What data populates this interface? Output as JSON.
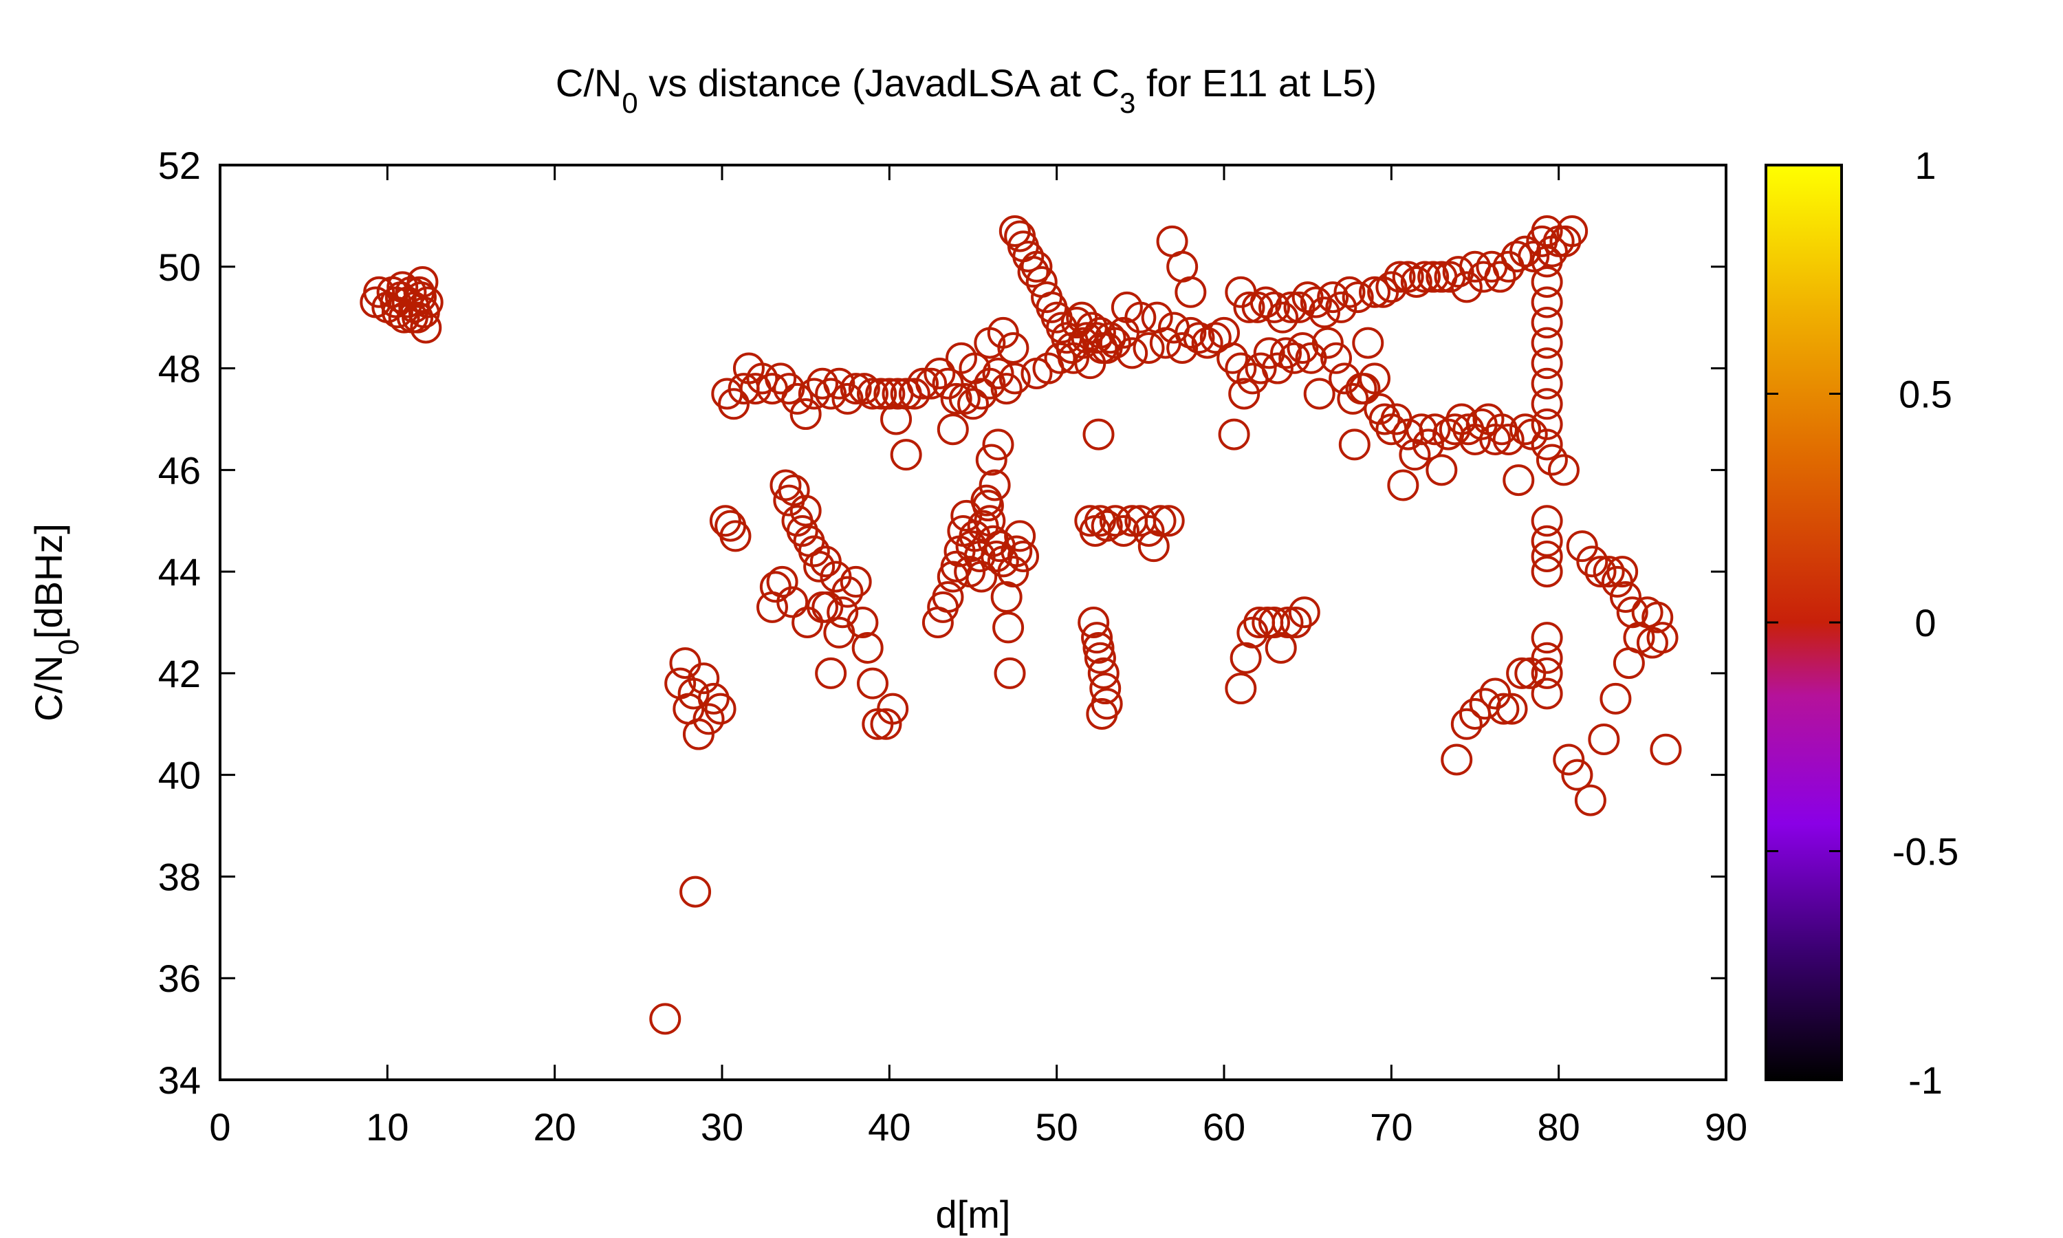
{
  "chart_data": {
    "type": "scatter",
    "title_parts": {
      "a": "C/N",
      "b": "0",
      "c": " vs distance (JavadLSA at C",
      "d": "3",
      "e": " for E11 at L5)"
    },
    "xlabel": "d[m]",
    "ylabel_parts": {
      "a": "C/N",
      "b": "0",
      "c": "[dBHz]"
    },
    "xlim": [
      0,
      90
    ],
    "ylim": [
      34,
      52
    ],
    "x_ticks": [
      "0",
      "10",
      "20",
      "30",
      "40",
      "50",
      "60",
      "70",
      "80",
      "90"
    ],
    "y_ticks": [
      "34",
      "36",
      "38",
      "40",
      "42",
      "44",
      "46",
      "48",
      "50",
      "52"
    ],
    "colorbar": {
      "range": [
        -1,
        1
      ],
      "ticks": [
        "-1",
        "-0.5",
        "0",
        "0.5",
        "1"
      ],
      "palette": [
        "#000000",
        "#3a0070",
        "#8a00e6",
        "#b5129a",
        "#c8200a",
        "#e06a00",
        "#f0b000",
        "#ffff00"
      ]
    },
    "marker_color": "#b81d00",
    "grid": false,
    "points": [
      [
        9.3,
        49.3
      ],
      [
        9.5,
        49.5
      ],
      [
        10,
        49.2
      ],
      [
        10.3,
        49.5
      ],
      [
        10.6,
        49.1
      ],
      [
        10.8,
        49.4
      ],
      [
        11,
        49.0
      ],
      [
        11.2,
        49.3
      ],
      [
        11.4,
        49.5
      ],
      [
        11.6,
        49.2
      ],
      [
        11.8,
        49.0
      ],
      [
        12,
        49.4
      ],
      [
        12.1,
        49.7
      ],
      [
        12.2,
        49.1
      ],
      [
        12.3,
        48.8
      ],
      [
        12.4,
        49.3
      ],
      [
        10.9,
        49.6
      ],
      [
        11.5,
        49.0
      ],
      [
        10.5,
        49.3
      ],
      [
        11.9,
        49.5
      ],
      [
        26.6,
        35.2
      ],
      [
        28.4,
        37.7
      ],
      [
        27.5,
        41.8
      ],
      [
        27.8,
        42.2
      ],
      [
        28,
        41.3
      ],
      [
        28.3,
        41.6
      ],
      [
        28.6,
        40.8
      ],
      [
        28.9,
        41.9
      ],
      [
        29.2,
        41.1
      ],
      [
        29.5,
        41.5
      ],
      [
        29.9,
        41.3
      ],
      [
        30.2,
        45.0
      ],
      [
        30.5,
        44.9
      ],
      [
        30.8,
        44.7
      ],
      [
        30.3,
        47.5
      ],
      [
        30.7,
        47.3
      ],
      [
        31.3,
        47.6
      ],
      [
        31.6,
        48.0
      ],
      [
        32.0,
        47.6
      ],
      [
        32.4,
        47.8
      ],
      [
        33.0,
        47.6
      ],
      [
        33.5,
        47.8
      ],
      [
        34.0,
        47.6
      ],
      [
        34.5,
        47.4
      ],
      [
        35.0,
        47.1
      ],
      [
        35.5,
        47.5
      ],
      [
        36.0,
        47.7
      ],
      [
        36.5,
        47.5
      ],
      [
        37.0,
        47.7
      ],
      [
        37.5,
        47.4
      ],
      [
        38.0,
        47.6
      ],
      [
        38.5,
        47.6
      ],
      [
        39.0,
        47.5
      ],
      [
        39.5,
        47.5
      ],
      [
        40.0,
        47.5
      ],
      [
        40.5,
        47.5
      ],
      [
        41.0,
        47.5
      ],
      [
        41.5,
        47.5
      ],
      [
        42.0,
        47.7
      ],
      [
        42.5,
        47.7
      ],
      [
        43.0,
        47.9
      ],
      [
        43.5,
        47.7
      ],
      [
        44.0,
        47.4
      ],
      [
        44.5,
        47.4
      ],
      [
        45.0,
        47.3
      ],
      [
        45.5,
        47.5
      ],
      [
        46.0,
        47.7
      ],
      [
        46.5,
        47.9
      ],
      [
        47.0,
        47.6
      ],
      [
        47.5,
        47.8
      ],
      [
        40.4,
        47.0
      ],
      [
        41.0,
        46.3
      ],
      [
        43.8,
        46.8
      ],
      [
        44.3,
        48.2
      ],
      [
        45.1,
        48.0
      ],
      [
        46.0,
        48.5
      ],
      [
        46.8,
        48.7
      ],
      [
        47.4,
        48.4
      ],
      [
        33.0,
        43.3
      ],
      [
        33.2,
        43.7
      ],
      [
        33.6,
        43.8
      ],
      [
        33.8,
        45.7
      ],
      [
        34.0,
        45.4
      ],
      [
        34.3,
        45.6
      ],
      [
        34.5,
        45.0
      ],
      [
        34.8,
        44.8
      ],
      [
        35.0,
        45.2
      ],
      [
        35.2,
        44.6
      ],
      [
        35.5,
        44.4
      ],
      [
        35.8,
        44.1
      ],
      [
        36.0,
        43.3
      ],
      [
        36.2,
        44.2
      ],
      [
        36.5,
        42.0
      ],
      [
        36.8,
        43.9
      ],
      [
        37.2,
        43.2
      ],
      [
        37.5,
        43.6
      ],
      [
        38.0,
        43.8
      ],
      [
        38.4,
        43.0
      ],
      [
        38.7,
        42.5
      ],
      [
        39.0,
        41.8
      ],
      [
        39.3,
        41.0
      ],
      [
        39.8,
        41.0
      ],
      [
        40.2,
        41.3
      ],
      [
        35.1,
        43.0
      ],
      [
        36.3,
        43.3
      ],
      [
        37.0,
        42.8
      ],
      [
        34.2,
        43.4
      ],
      [
        42.9,
        43.0
      ],
      [
        43.2,
        43.3
      ],
      [
        43.5,
        43.5
      ],
      [
        43.8,
        43.9
      ],
      [
        44.0,
        44.1
      ],
      [
        44.2,
        44.4
      ],
      [
        44.4,
        44.8
      ],
      [
        44.6,
        45.1
      ],
      [
        44.9,
        44.5
      ],
      [
        45.1,
        44.7
      ],
      [
        45.4,
        44.3
      ],
      [
        45.6,
        44.9
      ],
      [
        45.8,
        45.4
      ],
      [
        46.0,
        45.0
      ],
      [
        46.2,
        44.6
      ],
      [
        46.4,
        44.3
      ],
      [
        46.6,
        44.5
      ],
      [
        46.8,
        44.2
      ],
      [
        47.0,
        43.5
      ],
      [
        47.1,
        42.9
      ],
      [
        47.2,
        42.0
      ],
      [
        47.4,
        44.0
      ],
      [
        47.6,
        44.4
      ],
      [
        47.8,
        44.7
      ],
      [
        48.0,
        44.3
      ],
      [
        45.5,
        43.9
      ],
      [
        44.8,
        44.0
      ],
      [
        46.3,
        45.7
      ],
      [
        46.1,
        46.2
      ],
      [
        46.5,
        46.5
      ],
      [
        45.9,
        45.3
      ],
      [
        47.5,
        50.7
      ],
      [
        47.8,
        50.6
      ],
      [
        48.0,
        50.4
      ],
      [
        48.3,
        50.2
      ],
      [
        48.6,
        49.9
      ],
      [
        48.8,
        50.0
      ],
      [
        49.1,
        49.7
      ],
      [
        49.4,
        49.4
      ],
      [
        49.7,
        49.2
      ],
      [
        50.0,
        49.0
      ],
      [
        50.3,
        48.8
      ],
      [
        50.6,
        48.6
      ],
      [
        50.9,
        48.4
      ],
      [
        51.2,
        48.9
      ],
      [
        51.5,
        49.0
      ],
      [
        51.8,
        48.6
      ],
      [
        52.1,
        48.8
      ],
      [
        52.4,
        48.6
      ],
      [
        52.7,
        48.4
      ],
      [
        53.0,
        48.4
      ],
      [
        50.2,
        48.2
      ],
      [
        49.5,
        48.0
      ],
      [
        48.8,
        47.9
      ],
      [
        51.0,
        48.2
      ],
      [
        51.6,
        48.5
      ],
      [
        52.0,
        48.1
      ],
      [
        52.6,
        48.7
      ],
      [
        53.2,
        48.6
      ],
      [
        52.5,
        46.7
      ],
      [
        52.0,
        45.0
      ],
      [
        52.3,
        44.8
      ],
      [
        52.6,
        45.0
      ],
      [
        53.0,
        44.9
      ],
      [
        53.5,
        45.0
      ],
      [
        54.0,
        44.8
      ],
      [
        54.5,
        45.0
      ],
      [
        55.0,
        45.0
      ],
      [
        55.5,
        44.8
      ],
      [
        55.8,
        44.5
      ],
      [
        56.2,
        45.0
      ],
      [
        56.7,
        45.0
      ],
      [
        52.2,
        43.0
      ],
      [
        52.4,
        42.7
      ],
      [
        52.6,
        42.3
      ],
      [
        52.8,
        42.0
      ],
      [
        52.9,
        41.7
      ],
      [
        53.0,
        41.4
      ],
      [
        52.7,
        41.2
      ],
      [
        52.5,
        42.5
      ],
      [
        53.5,
        48.5
      ],
      [
        54.0,
        48.7
      ],
      [
        54.5,
        48.3
      ],
      [
        54.2,
        49.2
      ],
      [
        55.0,
        49.0
      ],
      [
        55.5,
        48.4
      ],
      [
        56.0,
        49.0
      ],
      [
        56.5,
        48.5
      ],
      [
        57.0,
        48.8
      ],
      [
        57.5,
        48.4
      ],
      [
        58.0,
        48.7
      ],
      [
        58.5,
        48.6
      ],
      [
        59.0,
        48.5
      ],
      [
        59.5,
        48.6
      ],
      [
        60.0,
        48.7
      ],
      [
        60.5,
        48.2
      ],
      [
        61.0,
        48.0
      ],
      [
        56.9,
        50.5
      ],
      [
        57.5,
        50.0
      ],
      [
        58.0,
        49.5
      ],
      [
        61.0,
        49.5
      ],
      [
        61.5,
        49.2
      ],
      [
        62.0,
        49.2
      ],
      [
        62.5,
        49.3
      ],
      [
        63.0,
        49.2
      ],
      [
        63.5,
        49.0
      ],
      [
        64.0,
        49.2
      ],
      [
        64.5,
        49.2
      ],
      [
        65.0,
        49.4
      ],
      [
        65.5,
        49.3
      ],
      [
        66.0,
        49.1
      ],
      [
        66.5,
        49.4
      ],
      [
        67.0,
        49.2
      ],
      [
        67.5,
        49.5
      ],
      [
        68.0,
        49.4
      ],
      [
        69.0,
        49.5
      ],
      [
        69.5,
        49.5
      ],
      [
        70.0,
        49.6
      ],
      [
        70.5,
        49.8
      ],
      [
        71.0,
        49.8
      ],
      [
        71.5,
        49.7
      ],
      [
        72.0,
        49.8
      ],
      [
        72.5,
        49.8
      ],
      [
        73.0,
        49.8
      ],
      [
        73.5,
        49.8
      ],
      [
        74.0,
        49.9
      ],
      [
        74.5,
        49.6
      ],
      [
        75.0,
        50.0
      ],
      [
        75.5,
        49.8
      ],
      [
        76.0,
        50.0
      ],
      [
        76.5,
        49.8
      ],
      [
        77.0,
        50.0
      ],
      [
        77.5,
        50.2
      ],
      [
        78.0,
        50.3
      ],
      [
        78.5,
        50.2
      ],
      [
        79.0,
        50.5
      ],
      [
        79.3,
        50.7
      ],
      [
        79.6,
        50.3
      ],
      [
        80.0,
        50.5
      ],
      [
        80.4,
        50.5
      ],
      [
        80.8,
        50.7
      ],
      [
        61.2,
        47.5
      ],
      [
        61.7,
        47.8
      ],
      [
        62.2,
        48.0
      ],
      [
        62.7,
        48.3
      ],
      [
        63.2,
        48.0
      ],
      [
        63.7,
        48.3
      ],
      [
        64.2,
        48.2
      ],
      [
        64.7,
        48.4
      ],
      [
        65.2,
        48.2
      ],
      [
        65.7,
        47.5
      ],
      [
        66.2,
        48.5
      ],
      [
        66.7,
        48.2
      ],
      [
        67.2,
        47.8
      ],
      [
        67.7,
        47.4
      ],
      [
        68.2,
        47.6
      ],
      [
        68.6,
        48.5
      ],
      [
        69.0,
        47.8
      ],
      [
        69.3,
        47.2
      ],
      [
        69.6,
        47.0
      ],
      [
        70.0,
        46.8
      ],
      [
        70.3,
        47.0
      ],
      [
        70.7,
        45.7
      ],
      [
        71.0,
        46.7
      ],
      [
        71.4,
        46.3
      ],
      [
        71.8,
        46.8
      ],
      [
        72.2,
        46.5
      ],
      [
        72.6,
        46.8
      ],
      [
        73.0,
        46.0
      ],
      [
        73.4,
        46.7
      ],
      [
        73.8,
        46.8
      ],
      [
        74.2,
        47.0
      ],
      [
        74.6,
        46.8
      ],
      [
        75.0,
        46.6
      ],
      [
        75.4,
        46.9
      ],
      [
        75.8,
        47.0
      ],
      [
        76.2,
        46.6
      ],
      [
        76.6,
        46.8
      ],
      [
        77.0,
        46.6
      ],
      [
        77.6,
        45.8
      ],
      [
        78.0,
        46.8
      ],
      [
        78.4,
        46.7
      ],
      [
        60.6,
        46.7
      ],
      [
        67.8,
        46.5
      ],
      [
        68.4,
        47.6
      ],
      [
        79.3,
        46.5
      ],
      [
        79.3,
        46.9
      ],
      [
        79.3,
        47.3
      ],
      [
        79.3,
        47.7
      ],
      [
        79.3,
        48.1
      ],
      [
        79.3,
        48.5
      ],
      [
        79.3,
        48.9
      ],
      [
        79.3,
        49.3
      ],
      [
        79.3,
        49.7
      ],
      [
        79.3,
        50.1
      ],
      [
        79.6,
        46.2
      ],
      [
        80.3,
        46.0
      ],
      [
        79.3,
        45.0
      ],
      [
        79.3,
        44.6
      ],
      [
        79.3,
        44.3
      ],
      [
        79.3,
        44.0
      ],
      [
        79.3,
        42.7
      ],
      [
        79.3,
        42.3
      ],
      [
        79.3,
        42.0
      ],
      [
        79.3,
        41.6
      ],
      [
        78.3,
        42.0
      ],
      [
        77.8,
        42.0
      ],
      [
        77.2,
        41.3
      ],
      [
        76.7,
        41.3
      ],
      [
        76.2,
        41.6
      ],
      [
        75.6,
        41.4
      ],
      [
        75.0,
        41.2
      ],
      [
        74.5,
        41.0
      ],
      [
        73.9,
        40.3
      ],
      [
        80.6,
        40.3
      ],
      [
        81.1,
        40.0
      ],
      [
        81.9,
        39.5
      ],
      [
        82.7,
        40.7
      ],
      [
        83.4,
        41.5
      ],
      [
        81.4,
        44.5
      ],
      [
        82.0,
        44.2
      ],
      [
        82.5,
        44.0
      ],
      [
        83.0,
        44.0
      ],
      [
        83.5,
        43.8
      ],
      [
        84.0,
        43.5
      ],
      [
        84.4,
        43.2
      ],
      [
        84.8,
        42.7
      ],
      [
        85.3,
        43.2
      ],
      [
        85.6,
        42.6
      ],
      [
        85.9,
        43.1
      ],
      [
        86.2,
        42.7
      ],
      [
        86.4,
        40.5
      ],
      [
        84.2,
        42.2
      ],
      [
        83.8,
        44.0
      ],
      [
        61.0,
        41.7
      ],
      [
        61.3,
        42.3
      ],
      [
        61.7,
        42.8
      ],
      [
        62.1,
        43.0
      ],
      [
        62.6,
        43.0
      ],
      [
        63.0,
        43.0
      ],
      [
        63.4,
        42.5
      ],
      [
        63.8,
        43.0
      ],
      [
        64.3,
        43.0
      ],
      [
        64.8,
        43.2
      ]
    ]
  }
}
